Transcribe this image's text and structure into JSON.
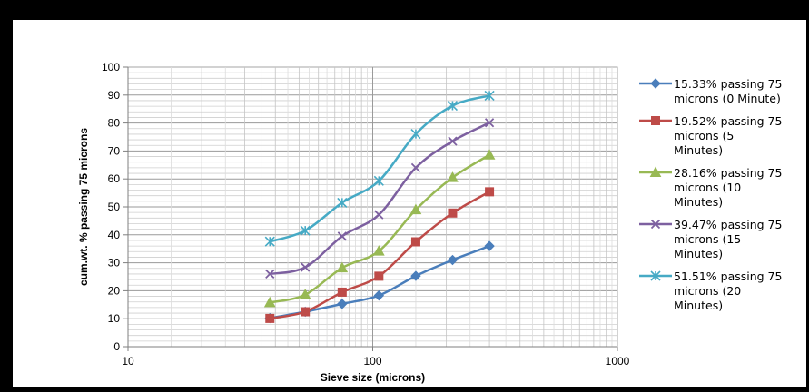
{
  "chart_data": {
    "type": "line",
    "title": "",
    "xlabel": "Sieve size (microns)",
    "ylabel": "cum.wt. % passing 75 microns",
    "x_scale": "log",
    "xlim": [
      10,
      1000
    ],
    "ylim": [
      0,
      100
    ],
    "x_ticks": [
      "10",
      "100",
      "1000"
    ],
    "y_ticks": [
      "0",
      "10",
      "20",
      "30",
      "40",
      "50",
      "60",
      "70",
      "80",
      "90",
      "100"
    ],
    "grid": true,
    "legend_position": "right",
    "x": [
      38,
      53,
      75,
      106,
      150,
      212,
      300
    ],
    "series": [
      {
        "name": "15.33% passing 75 microns (0 Minute)",
        "legend_lines": [
          "15.33% passing 75",
          "microns (0 Minute)"
        ],
        "color": "#4a7ebb",
        "marker": "diamond",
        "values": [
          10.2,
          12.5,
          15.3,
          18.3,
          25.3,
          31.0,
          36.0
        ]
      },
      {
        "name": "19.52% passing 75 microns (5 Minutes)",
        "legend_lines": [
          "19.52% passing 75",
          "microns (5",
          "Minutes)"
        ],
        "color": "#be4b48",
        "marker": "square",
        "values": [
          10.1,
          12.5,
          19.5,
          25.2,
          37.5,
          47.8,
          55.4
        ]
      },
      {
        "name": "28.16% passing 75 microns (10 Minutes)",
        "legend_lines": [
          "28.16% passing 75",
          "microns (10",
          "Minutes)"
        ],
        "color": "#98b954",
        "marker": "triangle",
        "values": [
          15.8,
          18.6,
          28.2,
          34.2,
          49.0,
          60.5,
          68.6
        ]
      },
      {
        "name": "39.47% passing 75 microns (15 Minutes)",
        "legend_lines": [
          "39.47% passing 75",
          "microns (15",
          "Minutes)"
        ],
        "color": "#7d60a0",
        "marker": "x",
        "values": [
          26.0,
          28.4,
          39.5,
          47.2,
          64.0,
          73.5,
          80.1
        ]
      },
      {
        "name": "51.51% passing 75 microns (20 Minutes)",
        "legend_lines": [
          "51.51% passing 75",
          "microns (20",
          "Minutes)"
        ],
        "color": "#46aac5",
        "marker": "star",
        "values": [
          37.6,
          41.5,
          51.5,
          59.3,
          76.1,
          86.2,
          89.8
        ]
      }
    ]
  }
}
